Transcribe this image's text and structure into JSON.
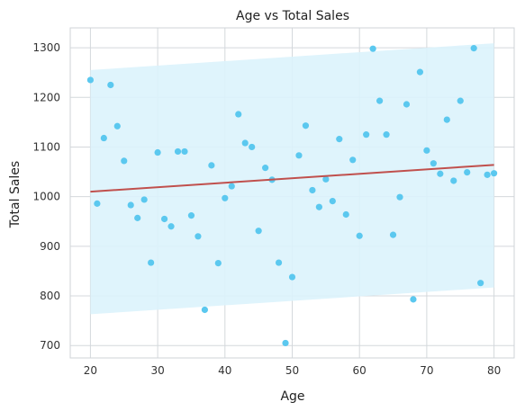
{
  "chart_data": {
    "type": "scatter",
    "title": "Age vs Total Sales",
    "xlabel": "Age",
    "ylabel": "Total Sales",
    "xlim": [
      17,
      83
    ],
    "ylim": [
      675,
      1340
    ],
    "xticks": [
      "20",
      "30",
      "40",
      "50",
      "60",
      "70",
      "80"
    ],
    "yticks": [
      "700",
      "800",
      "900",
      "1000",
      "1100",
      "1200",
      "1300"
    ],
    "grid": true,
    "colors": {
      "points": "#5bc8ef",
      "line": "#c0504d",
      "band": "#dbf3fc"
    },
    "regression": {
      "x": [
        20,
        80
      ],
      "y": [
        1010,
        1064
      ]
    },
    "confidence_band": {
      "x": [
        20,
        80
      ],
      "upper": [
        1255,
        1309
      ],
      "lower": [
        763,
        817
      ]
    },
    "points": [
      {
        "x": 20,
        "y": 1235
      },
      {
        "x": 21,
        "y": 986
      },
      {
        "x": 22,
        "y": 1118
      },
      {
        "x": 23,
        "y": 1225
      },
      {
        "x": 24,
        "y": 1142
      },
      {
        "x": 25,
        "y": 1072
      },
      {
        "x": 26,
        "y": 983
      },
      {
        "x": 27,
        "y": 957
      },
      {
        "x": 28,
        "y": 994
      },
      {
        "x": 29,
        "y": 867
      },
      {
        "x": 30,
        "y": 1089
      },
      {
        "x": 31,
        "y": 955
      },
      {
        "x": 32,
        "y": 940
      },
      {
        "x": 33,
        "y": 1091
      },
      {
        "x": 34,
        "y": 1091
      },
      {
        "x": 35,
        "y": 962
      },
      {
        "x": 36,
        "y": 920
      },
      {
        "x": 37,
        "y": 772
      },
      {
        "x": 38,
        "y": 1063
      },
      {
        "x": 39,
        "y": 866
      },
      {
        "x": 40,
        "y": 997
      },
      {
        "x": 41,
        "y": 1021
      },
      {
        "x": 42,
        "y": 1166
      },
      {
        "x": 43,
        "y": 1108
      },
      {
        "x": 44,
        "y": 1100
      },
      {
        "x": 45,
        "y": 931
      },
      {
        "x": 46,
        "y": 1058
      },
      {
        "x": 47,
        "y": 1034
      },
      {
        "x": 48,
        "y": 867
      },
      {
        "x": 49,
        "y": 705
      },
      {
        "x": 50,
        "y": 838
      },
      {
        "x": 51,
        "y": 1083
      },
      {
        "x": 52,
        "y": 1143
      },
      {
        "x": 53,
        "y": 1013
      },
      {
        "x": 54,
        "y": 979
      },
      {
        "x": 55,
        "y": 1035
      },
      {
        "x": 56,
        "y": 991
      },
      {
        "x": 57,
        "y": 1116
      },
      {
        "x": 58,
        "y": 964
      },
      {
        "x": 59,
        "y": 1074
      },
      {
        "x": 60,
        "y": 921
      },
      {
        "x": 61,
        "y": 1125
      },
      {
        "x": 62,
        "y": 1298
      },
      {
        "x": 63,
        "y": 1193
      },
      {
        "x": 64,
        "y": 1125
      },
      {
        "x": 65,
        "y": 923
      },
      {
        "x": 66,
        "y": 999
      },
      {
        "x": 67,
        "y": 1186
      },
      {
        "x": 68,
        "y": 793
      },
      {
        "x": 69,
        "y": 1251
      },
      {
        "x": 70,
        "y": 1093
      },
      {
        "x": 71,
        "y": 1067
      },
      {
        "x": 72,
        "y": 1046
      },
      {
        "x": 73,
        "y": 1155
      },
      {
        "x": 74,
        "y": 1032
      },
      {
        "x": 75,
        "y": 1193
      },
      {
        "x": 76,
        "y": 1049
      },
      {
        "x": 77,
        "y": 1299
      },
      {
        "x": 78,
        "y": 826
      },
      {
        "x": 79,
        "y": 1044
      },
      {
        "x": 80,
        "y": 1047
      }
    ]
  }
}
